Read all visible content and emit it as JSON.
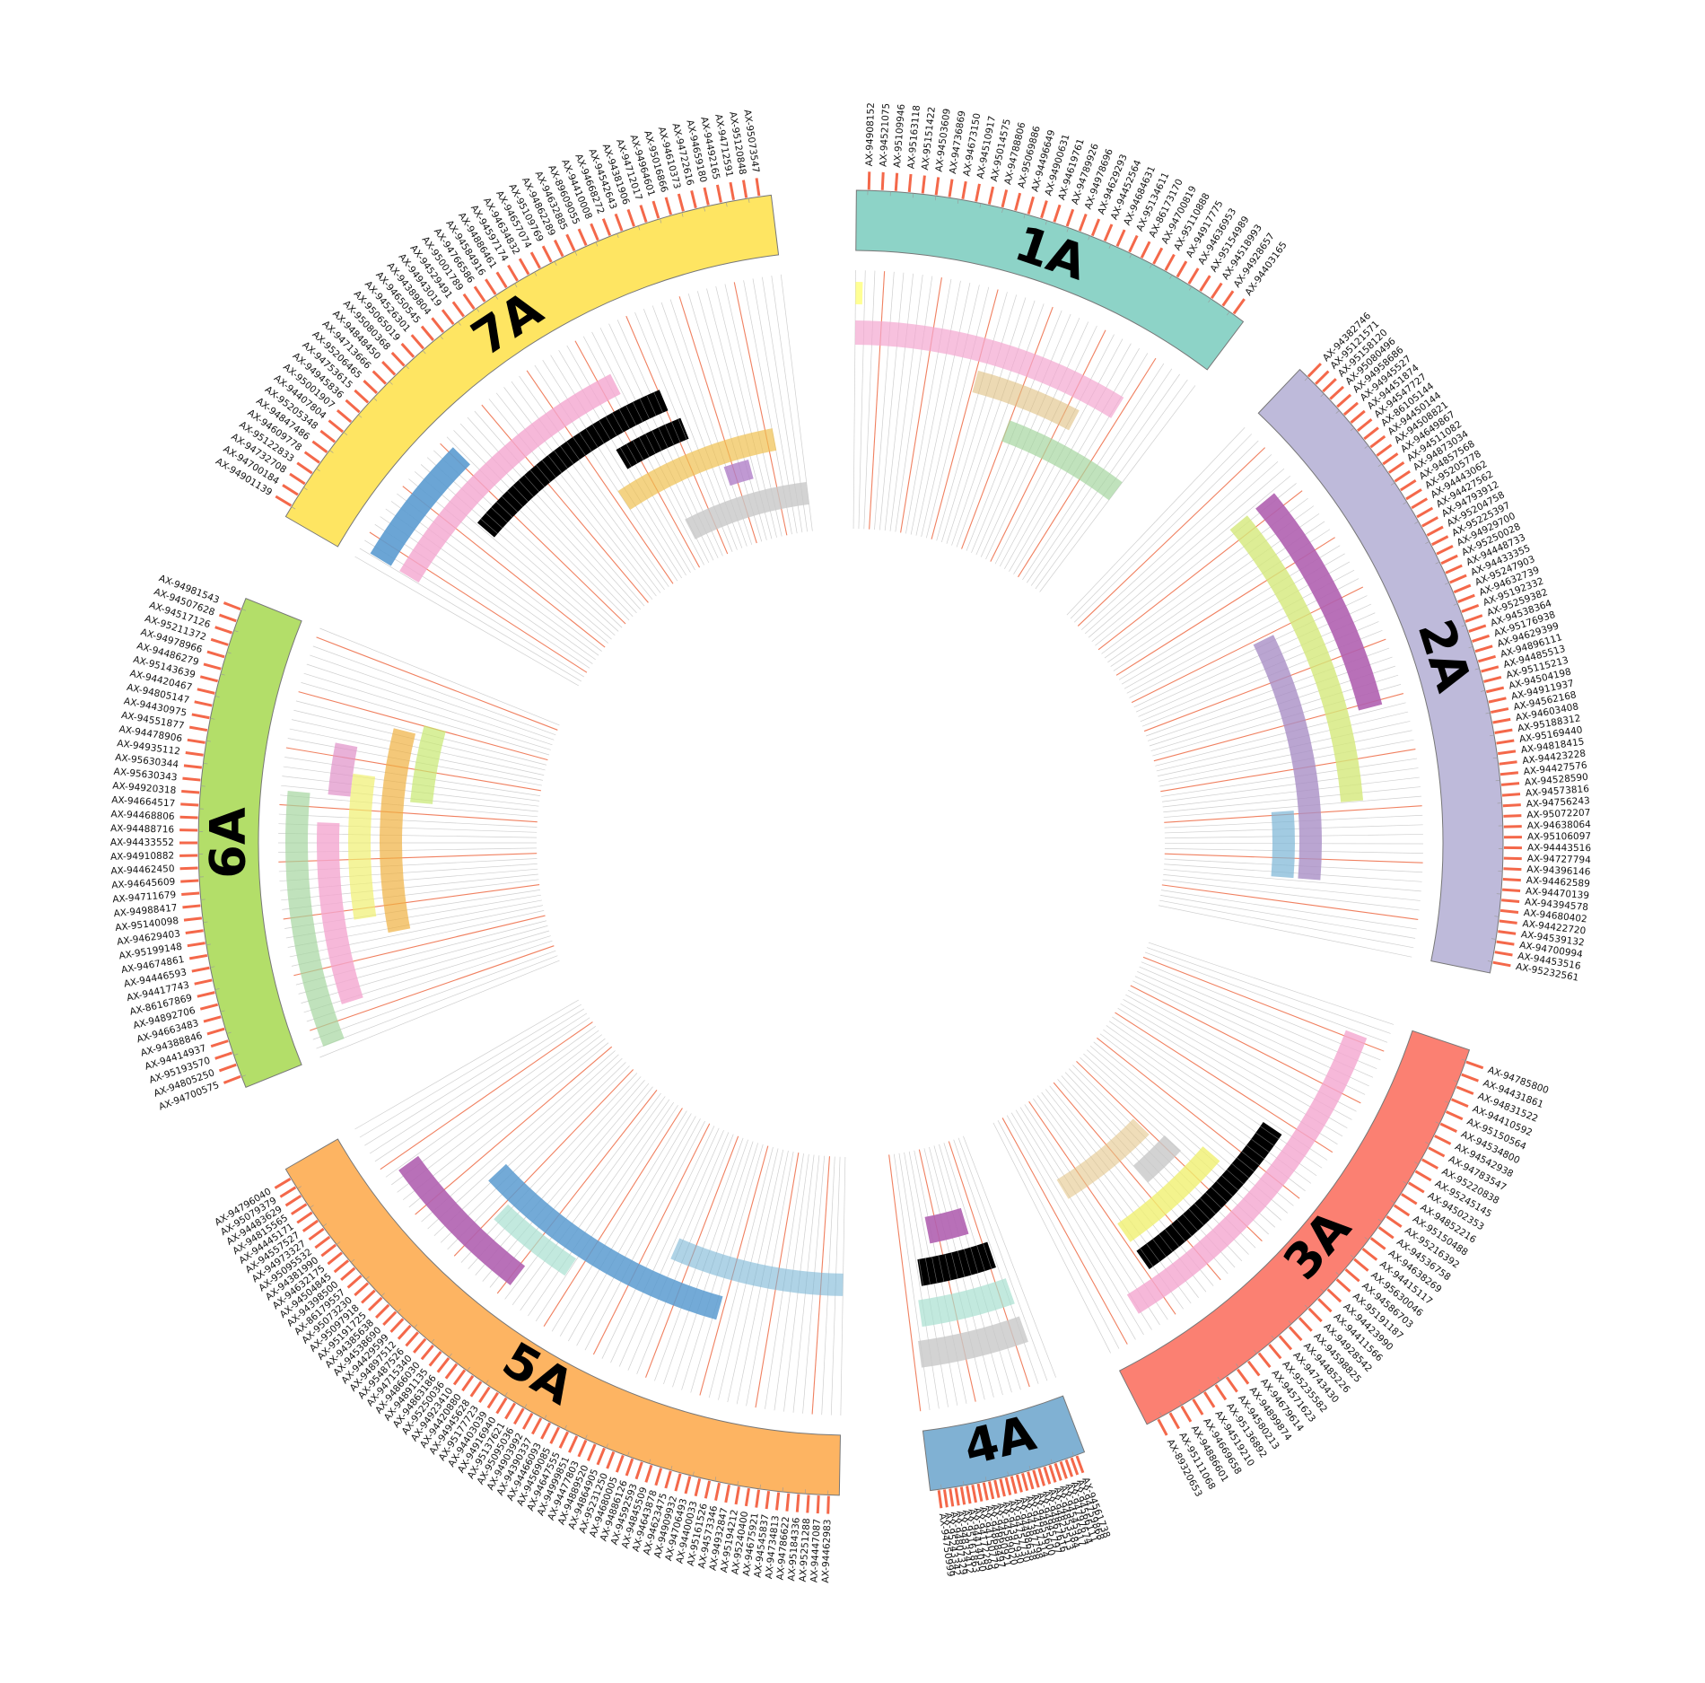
{
  "chromosomes": [
    {
      "label": "1A",
      "color": "#8dd3c7",
      "markers": [
        "AX-94908152",
        "AX-94521075",
        "AX-95109946",
        "AX-95163118",
        "AX-95151422",
        "AX-94503609",
        "AX-94736869",
        "AX-94673150",
        "AX-94510917",
        "AX-95014575",
        "AX-94788806",
        "AX-95069886",
        "AX-94496649",
        "AX-94900631",
        "AX-94619761",
        "AX-94789926",
        "AX-94978696",
        "AX-94629293",
        "AX-94452564",
        "AX-94684631",
        "AX-95134611",
        "AX-86173170",
        "AX-94700819",
        "AX-95110888",
        "AX-94917775",
        "AX-94636953",
        "AX-95154989",
        "AX-94518993",
        "AX-94928657",
        "AX-94403165"
      ]
    },
    {
      "label": "2A",
      "color": "#bebada",
      "markers": [
        "AX-94382746",
        "AX-95121571",
        "AX-95158120",
        "AX-95080496",
        "AX-94958686",
        "AX-94945527",
        "AX-94451874",
        "AX-94547727",
        "AX-86105144",
        "AX-94450144",
        "AX-94508821",
        "AX-94649867",
        "AX-94511082",
        "AX-94873034",
        "AX-94857568",
        "AX-95205778",
        "AX-94443062",
        "AX-94427562",
        "AX-94793912",
        "AX-95204758",
        "AX-95225397",
        "AX-94929700",
        "AX-95250028",
        "AX-94448733",
        "AX-94433355",
        "AX-95247903",
        "AX-94632739",
        "AX-95192332",
        "AX-95259382",
        "AX-94538364",
        "AX-95176938",
        "AX-94629399",
        "AX-94896111",
        "AX-94485513",
        "AX-95115213",
        "AX-94504198",
        "AX-94911937",
        "AX-94562168",
        "AX-94603408",
        "AX-95188312",
        "AX-95169440",
        "AX-94818415",
        "AX-94423228",
        "AX-94427576",
        "AX-94528590",
        "AX-94573816",
        "AX-94756243",
        "AX-95072207",
        "AX-94638064",
        "AX-95106097",
        "AX-94443516",
        "AX-94727794",
        "AX-94396146",
        "AX-94462589",
        "AX-94470139",
        "AX-94394578",
        "AX-94680402",
        "AX-94422720",
        "AX-94539132",
        "AX-94700994",
        "AX-94453516",
        "AX-95232561"
      ]
    },
    {
      "label": "3A",
      "color": "#fb8072",
      "markers": [
        "AX-94785800",
        "AX-94431861",
        "AX-94831522",
        "AX-94410592",
        "AX-95150564",
        "AX-94534800",
        "AX-94542938",
        "AX-94783547",
        "AX-95220838",
        "AX-95245145",
        "AX-94502353",
        "AX-94852216",
        "AX-95150488",
        "AX-95216392",
        "AX-94536758",
        "AX-94638269",
        "AX-94415117",
        "AX-95630046",
        "AX-94586703",
        "AX-95191187",
        "AX-94423990",
        "AX-94411566",
        "AX-94928542",
        "AX-94598825",
        "AX-94485226",
        "AX-94743430",
        "AX-95235582",
        "AX-94571623",
        "AX-94679614",
        "AX-94899874",
        "AX-94580213",
        "AX-95136892",
        "AX-94519210",
        "AX-94669658",
        "AX-94886601",
        "AX-95111068",
        "AX-89320653"
      ]
    },
    {
      "label": "4A",
      "color": "#80b1d3",
      "markers": [
        "AX-94561738",
        "AX-94759868",
        "AX-94566111",
        "AX-94797674",
        "AX-94545917",
        "AX-94853384",
        "AX-94825513",
        "AX-94867616",
        "AX-94945797",
        "AX-94855600",
        "AX-94787314",
        "AX-94387798",
        "AX-94498638",
        "AX-94757730",
        "AX-94397930",
        "AX-94589020",
        "AX-94660921",
        "AX-94868497",
        "AX-94150779",
        "AX-94172289",
        "AX-94414030",
        "AX-95161863",
        "AX-94832412",
        "AX-94807329",
        "AX-95243342",
        "AX-94750999"
      ]
    },
    {
      "label": "5A",
      "color": "#fdb462",
      "markers": [
        "AX-94462983",
        "AX-94447087",
        "AX-95251288",
        "AX-95184336",
        "AX-94786622",
        "AX-94734813",
        "AX-94545837",
        "AX-94675921",
        "AX-95240400",
        "AX-95194212",
        "AX-94932847",
        "AX-94573346",
        "AX-95161526",
        "AX-94400033",
        "AX-94706493",
        "AX-94909932",
        "AX-94623475",
        "AX-94643878",
        "AX-94845509",
        "AX-94592593",
        "AX-94886126",
        "AX-94680005",
        "AX-95231250",
        "AX-94864905",
        "AX-94889520",
        "AX-94477803",
        "AX-94999851",
        "AX-94647555",
        "AX-94569085",
        "AX-94466093",
        "AX-94390337",
        "AX-94903992",
        "AX-95095036",
        "AX-95137621",
        "AX-94916940",
        "AX-94403039",
        "AX-95177723",
        "AX-94945628",
        "AX-94420880",
        "AX-94923410",
        "AX-95250036",
        "AX-94863186",
        "AX-94891135",
        "AX-94866030",
        "AX-94715340",
        "AX-95487526",
        "AX-94897512",
        "AX-94429599",
        "AX-94538690",
        "AX-94385638",
        "AX-95191725",
        "AX-95097918",
        "AX-95073230",
        "AX-86179557",
        "AX-94398500",
        "AX-94504845",
        "AX-94632175",
        "AX-94381990",
        "AX-95095532",
        "AX-94973327",
        "AX-94557527",
        "AX-94445171",
        "AX-94815565",
        "AX-94483629",
        "AX-95079379",
        "AX-94796040"
      ]
    },
    {
      "label": "6A",
      "color": "#b3de69",
      "markers": [
        "AX-94700575",
        "AX-94805250",
        "AX-95193570",
        "AX-94414937",
        "AX-94388846",
        "AX-94663483",
        "AX-94892706",
        "AX-86167869",
        "AX-94417743",
        "AX-94446593",
        "AX-94674861",
        "AX-95199148",
        "AX-94629403",
        "AX-95140098",
        "AX-94988417",
        "AX-94711679",
        "AX-94645609",
        "AX-94462450",
        "AX-94910882",
        "AX-94433552",
        "AX-94488716",
        "AX-94468806",
        "AX-94664517",
        "AX-94920318",
        "AX-95630343",
        "AX-95630344",
        "AX-94935112",
        "AX-94478906",
        "AX-94551877",
        "AX-94430975",
        "AX-94805147",
        "AX-94420467",
        "AX-95143639",
        "AX-94486279",
        "AX-94978966",
        "AX-95211372",
        "AX-94517126",
        "AX-94507628",
        "AX-94981543"
      ]
    },
    {
      "label": "7A",
      "color": "#fee562",
      "markers": [
        "AX-94901139",
        "AX-94700184",
        "AX-94732708",
        "AX-95122833",
        "AX-94609778",
        "AX-94847486",
        "AX-95205348",
        "AX-94407804",
        "AX-95001907",
        "AX-94945836",
        "AX-94753615",
        "AX-95206465",
        "AX-94713666",
        "AX-94848450",
        "AX-95080368",
        "AX-95065019",
        "AX-94526301",
        "AX-94650545",
        "AX-94389804",
        "AX-94943019",
        "AX-94529491",
        "AX-95001789",
        "AX-94766586",
        "AX-94584916",
        "AX-94886461",
        "AX-94597174",
        "AX-94634832",
        "AX-94657074",
        "AX-95109769",
        "AX-94862289",
        "AX-94632885",
        "AX-89609055",
        "AX-94410008",
        "AX-94668272",
        "AX-94542643",
        "AX-94381906",
        "AX-94712017",
        "AX-94964601",
        "AX-95016866",
        "AX-94610373",
        "AX-94722616",
        "AX-94659180",
        "AX-94492165",
        "AX-94712591",
        "AX-95120848",
        "AX-95073547"
      ]
    }
  ]
}
